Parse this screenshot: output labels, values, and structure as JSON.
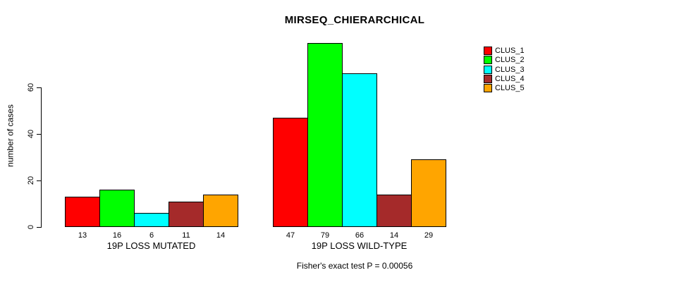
{
  "chart_data": {
    "type": "bar",
    "title": "MIRSEQ_CHIERARCHICAL",
    "ylabel": "number of cases",
    "xlabel": "",
    "ylim": [
      0,
      80
    ],
    "yticks": [
      0,
      20,
      40,
      60
    ],
    "grid": false,
    "legend_position": "right-outside",
    "categories": [
      "CLUS_1",
      "CLUS_2",
      "CLUS_3",
      "CLUS_4",
      "CLUS_5"
    ],
    "colors": [
      "#ff0000",
      "#00ff00",
      "#00ffff",
      "#a52a2a",
      "#ffa500"
    ],
    "groups": [
      {
        "label": "19P LOSS MUTATED",
        "values": [
          13,
          16,
          6,
          11,
          14
        ]
      },
      {
        "label": "19P LOSS WILD-TYPE",
        "values": [
          47,
          79,
          66,
          14,
          29
        ]
      }
    ],
    "annotation": "Fisher's exact test P = 0.00056"
  }
}
